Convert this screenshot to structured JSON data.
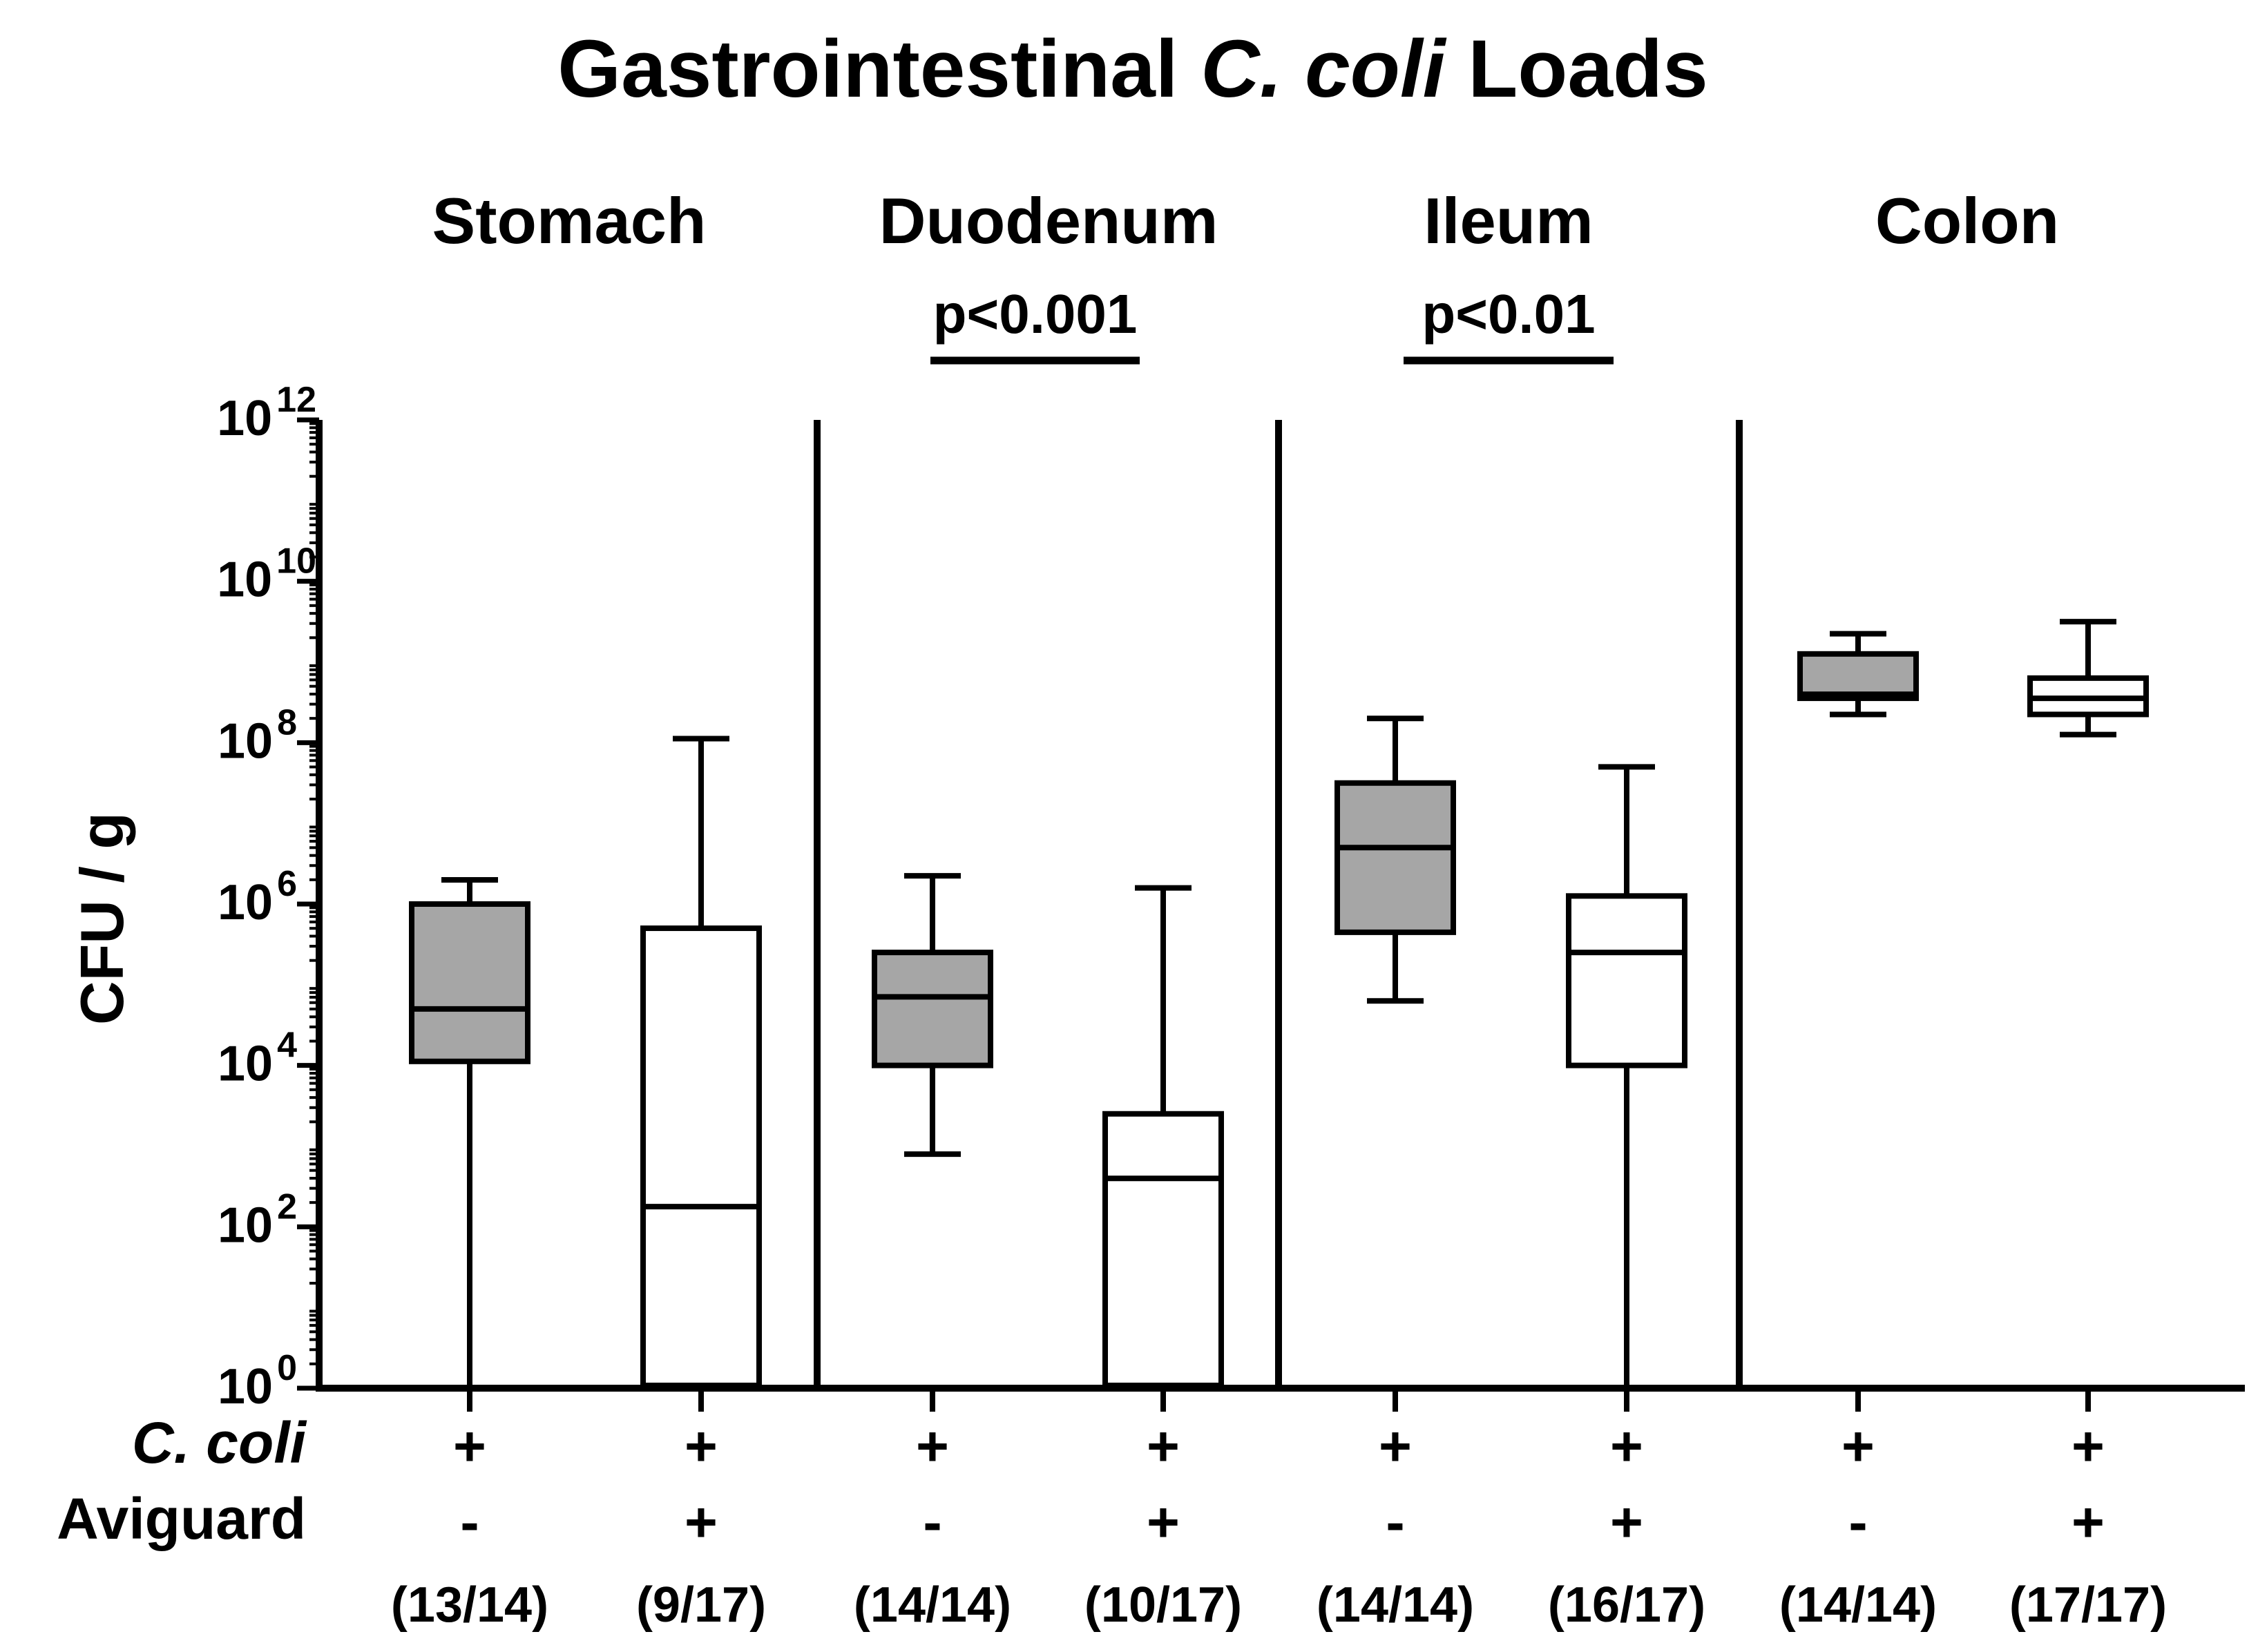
{
  "chart_data": {
    "type": "box",
    "title": {
      "prefix": "Gastrointestinal ",
      "italic": "C. coli",
      "suffix": " Loads"
    },
    "ylabel": "CFU / g",
    "yscale": "log10",
    "ylim_exponent": [
      0,
      12
    ],
    "y_ticks": [
      {
        "base": "10",
        "exp": "0",
        "value_exp": 0
      },
      {
        "base": "10",
        "exp": "2",
        "value_exp": 2
      },
      {
        "base": "10",
        "exp": "4",
        "value_exp": 4
      },
      {
        "base": "10",
        "exp": "6",
        "value_exp": 6
      },
      {
        "base": "10",
        "exp": "8",
        "value_exp": 8
      },
      {
        "base": "10",
        "exp": "10",
        "value_exp": 10
      },
      {
        "base": "10",
        "exp": "12",
        "value_exp": 12
      }
    ],
    "row_labels": {
      "c_coli": "C. coli",
      "aviguard": "Aviguard"
    },
    "colors": {
      "infected_only": "#a6a6a6",
      "aviguard_treated": "#ffffff",
      "stroke": "#000000"
    },
    "sections": [
      {
        "name": "Stomach",
        "pvalue": ""
      },
      {
        "name": "Duodenum",
        "pvalue": "p<0.001"
      },
      {
        "name": "Ileum",
        "pvalue": "p<0.01"
      },
      {
        "name": "Colon",
        "pvalue": ""
      }
    ],
    "boxes": [
      {
        "section": "Stomach",
        "c_coli": "+",
        "aviguard": "-",
        "n": "(13/14)",
        "filled": true,
        "whisker_low_exp": 0,
        "q1_exp": 4.05,
        "median_exp": 4.7,
        "q3_exp": 6.0,
        "whisker_high_exp": 6.3
      },
      {
        "section": "Stomach",
        "c_coli": "+",
        "aviguard": "+",
        "n": "(9/17)",
        "filled": false,
        "whisker_low_exp": 0,
        "q1_exp": 0,
        "median_exp": 2.25,
        "q3_exp": 5.7,
        "whisker_high_exp": 8.05
      },
      {
        "section": "Duodenum",
        "c_coli": "+",
        "aviguard": "-",
        "n": "(14/14)",
        "filled": true,
        "whisker_low_exp": 2.9,
        "q1_exp": 4.0,
        "median_exp": 4.85,
        "q3_exp": 5.4,
        "whisker_high_exp": 6.35
      },
      {
        "section": "Duodenum",
        "c_coli": "+",
        "aviguard": "+",
        "n": "(10/17)",
        "filled": false,
        "whisker_low_exp": 0,
        "q1_exp": 0,
        "median_exp": 2.6,
        "q3_exp": 3.4,
        "whisker_high_exp": 6.2
      },
      {
        "section": "Ileum",
        "c_coli": "+",
        "aviguard": "-",
        "n": "(14/14)",
        "filled": true,
        "whisker_low_exp": 4.8,
        "q1_exp": 5.65,
        "median_exp": 6.7,
        "q3_exp": 7.5,
        "whisker_high_exp": 8.3
      },
      {
        "section": "Ileum",
        "c_coli": "+",
        "aviguard": "+",
        "n": "(16/17)",
        "filled": false,
        "whisker_low_exp": 0,
        "q1_exp": 4.0,
        "median_exp": 5.4,
        "q3_exp": 6.1,
        "whisker_high_exp": 7.7
      },
      {
        "section": "Colon",
        "c_coli": "+",
        "aviguard": "-",
        "n": "(14/14)",
        "filled": true,
        "whisker_low_exp": 8.35,
        "q1_exp": 8.55,
        "median_exp": 8.6,
        "q3_exp": 9.1,
        "whisker_high_exp": 9.35
      },
      {
        "section": "Colon",
        "c_coli": "+",
        "aviguard": "+",
        "n": "(17/17)",
        "filled": false,
        "whisker_low_exp": 8.1,
        "q1_exp": 8.35,
        "median_exp": 8.55,
        "q3_exp": 8.8,
        "whisker_high_exp": 9.5
      }
    ]
  }
}
